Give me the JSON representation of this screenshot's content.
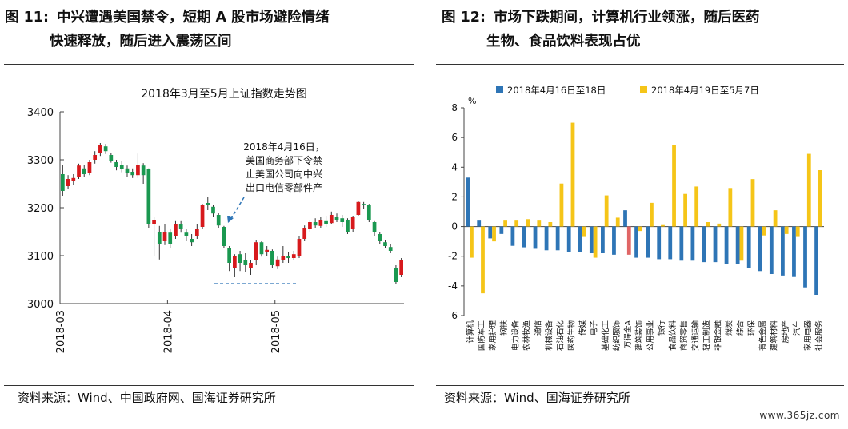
{
  "left_figure": {
    "number": "图 11:",
    "title_line1": "中兴遭遇美国禁令，短期 A 股市场避险情绪",
    "title_line2": "快速释放，随后进入震荡区间",
    "source": "资料来源：Wind、中国政府网、国海证券研究所"
  },
  "right_figure": {
    "number": "图 12:",
    "title_line1": "市场下跌期间，计算机行业领涨，随后医药",
    "title_line2": "生物、食品饮料表现占优",
    "source": "资料来源：Wind、国海证券研究所"
  },
  "watermark": "www.365jz.com",
  "chart_data": [
    {
      "type": "candlestick",
      "title": "2018年3月至5月上证指数走势图",
      "ylim": [
        3000,
        3400
      ],
      "yticks": [
        3000,
        3100,
        3200,
        3300,
        3400
      ],
      "xticks": [
        "2018-03",
        "2018-04",
        "2018-05"
      ],
      "xtick_index": [
        0,
        20,
        40
      ],
      "up_color": "#d7191c",
      "down_color": "#1a9850",
      "annotation": [
        "2018年4月16日，",
        "美国商务部下令禁",
        "止美国公司向中兴",
        "出口电信零部件产"
      ],
      "candles": [
        [
          3270,
          3235,
          3290,
          3225
        ],
        [
          3245,
          3260,
          3268,
          3240
        ],
        [
          3255,
          3262,
          3270,
          3248
        ],
        [
          3265,
          3288,
          3292,
          3260
        ],
        [
          3282,
          3270,
          3290,
          3265
        ],
        [
          3272,
          3295,
          3300,
          3268
        ],
        [
          3300,
          3310,
          3318,
          3292
        ],
        [
          3315,
          3330,
          3335,
          3308
        ],
        [
          3328,
          3318,
          3333,
          3312
        ],
        [
          3310,
          3298,
          3315,
          3294
        ],
        [
          3295,
          3285,
          3300,
          3278
        ],
        [
          3290,
          3280,
          3298,
          3274
        ],
        [
          3282,
          3272,
          3288,
          3265
        ],
        [
          3275,
          3268,
          3282,
          3262
        ],
        [
          3268,
          3290,
          3313,
          3262
        ],
        [
          3288,
          3268,
          3293,
          3250
        ],
        [
          3280,
          3165,
          3282,
          3158
        ],
        [
          3165,
          3175,
          3180,
          3100
        ],
        [
          3150,
          3125,
          3162,
          3092
        ],
        [
          3130,
          3150,
          3165,
          3122
        ],
        [
          3148,
          3125,
          3155,
          3115
        ],
        [
          3140,
          3165,
          3172,
          3135
        ],
        [
          3165,
          3155,
          3172,
          3148
        ],
        [
          3148,
          3140,
          3155,
          3130
        ],
        [
          3135,
          3128,
          3145,
          3120
        ],
        [
          3140,
          3155,
          3165,
          3135
        ],
        [
          3160,
          3205,
          3208,
          3155
        ],
        [
          3210,
          3205,
          3222,
          3195
        ],
        [
          3202,
          3188,
          3206,
          3180
        ],
        [
          3185,
          3163,
          3190,
          3158
        ],
        [
          3160,
          3120,
          3162,
          3115
        ],
        [
          3115,
          3085,
          3120,
          3068
        ],
        [
          3075,
          3100,
          3103,
          3055
        ],
        [
          3103,
          3085,
          3110,
          3068
        ],
        [
          3090,
          3080,
          3105,
          3065
        ],
        [
          3075,
          3085,
          3090,
          3060
        ],
        [
          3090,
          3128,
          3132,
          3080
        ],
        [
          3128,
          3103,
          3130,
          3098
        ],
        [
          3108,
          3112,
          3120,
          3100
        ],
        [
          3110,
          3080,
          3113,
          3075
        ],
        [
          3078,
          3092,
          3098,
          3072
        ],
        [
          3090,
          3100,
          3120,
          3085
        ],
        [
          3100,
          3095,
          3108,
          3085
        ],
        [
          3095,
          3103,
          3110,
          3090
        ],
        [
          3100,
          3135,
          3140,
          3095
        ],
        [
          3135,
          3158,
          3163,
          3130
        ],
        [
          3155,
          3170,
          3175,
          3150
        ],
        [
          3170,
          3163,
          3178,
          3158
        ],
        [
          3162,
          3175,
          3180,
          3158
        ],
        [
          3172,
          3165,
          3183,
          3160
        ],
        [
          3168,
          3185,
          3192,
          3165
        ],
        [
          3180,
          3175,
          3188,
          3170
        ],
        [
          3178,
          3170,
          3185,
          3160
        ],
        [
          3175,
          3150,
          3178,
          3145
        ],
        [
          3155,
          3180,
          3182,
          3150
        ],
        [
          3185,
          3212,
          3215,
          3182
        ],
        [
          3208,
          3205,
          3212,
          3198
        ],
        [
          3205,
          3175,
          3208,
          3170
        ],
        [
          3170,
          3150,
          3172,
          3140
        ],
        [
          3145,
          3130,
          3150,
          3125
        ],
        [
          3128,
          3120,
          3133,
          3115
        ],
        [
          3118,
          3110,
          3125,
          3105
        ],
        [
          3075,
          3045,
          3080,
          3040
        ],
        [
          3060,
          3090,
          3095,
          3055
        ]
      ]
    },
    {
      "type": "bar",
      "ylim": [
        -6,
        8
      ],
      "yticks": [
        -6,
        -4,
        -2,
        0,
        2,
        4,
        6,
        8
      ],
      "yunit": "%",
      "legend": "top",
      "categories": [
        "计算机",
        "国防军工",
        "家用护理",
        "钢铁",
        "电力设备",
        "农林牧渔",
        "通信",
        "机械设备",
        "石油石化",
        "医药生物",
        "传媒",
        "电子",
        "基础化工",
        "纺织服饰",
        "万得全A",
        "建筑装饰",
        "公用事业",
        "银行",
        "食品饮料",
        "商贸零售",
        "交通运输",
        "轻工制造",
        "非银金融",
        "煤炭",
        "综合",
        "环保",
        "有色金属",
        "建筑材料",
        "房地产",
        "汽车",
        "家用电器",
        "社会服务"
      ],
      "series": [
        {
          "name": "2018年4月16日至18日",
          "color": "#2e75b6",
          "values": [
            3.3,
            0.4,
            -0.8,
            -0.5,
            -1.3,
            -1.4,
            -1.5,
            -1.6,
            -1.6,
            -1.7,
            -1.7,
            -1.8,
            -1.8,
            -1.9,
            1.1,
            -2.1,
            -2.1,
            -2.2,
            -2.2,
            -2.3,
            -2.3,
            -2.4,
            -2.4,
            -2.5,
            -2.5,
            -2.8,
            -3.0,
            -3.2,
            -3.3,
            -3.4,
            -4.1,
            -4.6
          ]
        },
        {
          "name": "2018年4月19日至5月7日",
          "color": "#f5c518",
          "values": [
            -2.1,
            -4.5,
            -1.0,
            0.4,
            0.4,
            0.5,
            0.4,
            0.3,
            2.9,
            7.0,
            -0.7,
            -2.1,
            2.1,
            0.6,
            -1.9,
            -0.3,
            1.6,
            0.1,
            5.5,
            2.2,
            2.7,
            0.3,
            0.2,
            2.6,
            -2.3,
            3.2,
            -0.6,
            1.1,
            -0.5,
            -0.7,
            4.9,
            3.8
          ]
        }
      ],
      "highlight_index": 14,
      "highlight_color": "#e06666"
    }
  ]
}
